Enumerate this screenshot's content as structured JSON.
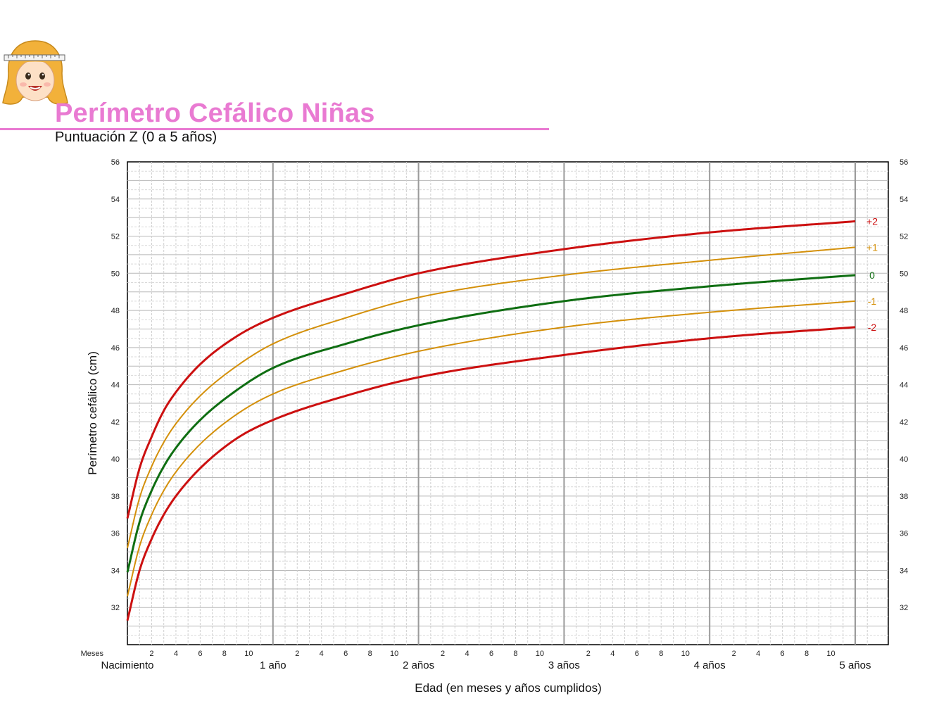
{
  "header": {
    "title": "Perímetro Cefálico Niñas",
    "subtitle": "Puntuación Z (0 a 5 años)"
  },
  "colors": {
    "title": "#e97ad2",
    "red": "#cc1010",
    "orange": "#d4900a",
    "green": "#0f6e12"
  },
  "chart_data": {
    "type": "line",
    "ylabel": "Perímetro cefálico (cm)",
    "xlabel": "Edad (en meses y años cumplidos)",
    "ylim": [
      30,
      56
    ],
    "xlim_months": [
      0,
      60
    ],
    "y_ticks": [
      32,
      34,
      36,
      38,
      40,
      42,
      44,
      46,
      48,
      50,
      52,
      54,
      56
    ],
    "x_month_ticks": [
      "2",
      "4",
      "6",
      "8",
      "10"
    ],
    "x_year_labels": [
      "Nacimiento",
      "1 año",
      "2 años",
      "3 años",
      "4 años",
      "5 años"
    ],
    "x_minor_label": "Meses",
    "grid": true,
    "x_months": [
      0,
      1,
      2,
      3,
      4,
      6,
      9,
      12,
      18,
      24,
      36,
      48,
      60
    ],
    "series": [
      {
        "name": "+2",
        "color": "#cc1010",
        "values": [
          36.8,
          39.5,
          41.2,
          42.6,
          43.6,
          45.1,
          46.6,
          47.6,
          48.9,
          50.0,
          51.3,
          52.2,
          52.8
        ]
      },
      {
        "name": "+1",
        "color": "#d4900a",
        "values": [
          35.2,
          37.9,
          39.6,
          40.9,
          41.9,
          43.4,
          45.0,
          46.2,
          47.6,
          48.7,
          49.9,
          50.7,
          51.4
        ]
      },
      {
        "name": "0",
        "color": "#0f6e12",
        "values": [
          33.9,
          36.6,
          38.3,
          39.6,
          40.6,
          42.1,
          43.7,
          44.9,
          46.2,
          47.2,
          48.5,
          49.3,
          49.9
        ]
      },
      {
        "name": "-1",
        "color": "#d4900a",
        "values": [
          32.6,
          35.3,
          37.0,
          38.3,
          39.3,
          40.8,
          42.4,
          43.5,
          44.8,
          45.8,
          47.1,
          47.9,
          48.5
        ]
      },
      {
        "name": "-2",
        "color": "#cc1010",
        "values": [
          31.3,
          34.0,
          35.7,
          37.0,
          38.0,
          39.5,
          41.1,
          42.1,
          43.4,
          44.4,
          45.6,
          46.5,
          47.1
        ]
      }
    ]
  }
}
